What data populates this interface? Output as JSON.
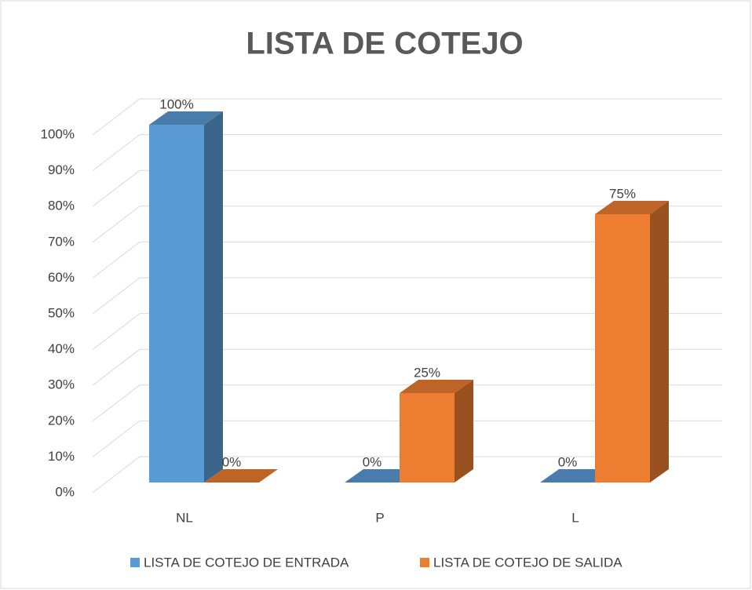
{
  "chart_data": {
    "type": "bar3d",
    "title": "LISTA DE COTEJO",
    "categories": [
      "NL",
      "P",
      "L"
    ],
    "series": [
      {
        "name": "LISTA DE COTEJO DE ENTRADA",
        "color": "#5b9bd5",
        "values": [
          100,
          0,
          0
        ],
        "value_labels": [
          "100%",
          "0%",
          "0%"
        ]
      },
      {
        "name": "LISTA DE COTEJO DE SALIDA",
        "color": "#ed7d31",
        "values": [
          0,
          25,
          75
        ],
        "value_labels": [
          "0%",
          "25%",
          "75%"
        ]
      }
    ],
    "ylim": [
      0,
      100
    ],
    "yticks": [
      {
        "value": 0,
        "label": "0%"
      },
      {
        "value": 10,
        "label": "10%"
      },
      {
        "value": 20,
        "label": "20%"
      },
      {
        "value": 30,
        "label": "30%"
      },
      {
        "value": 40,
        "label": "40%"
      },
      {
        "value": 50,
        "label": "50%"
      },
      {
        "value": 60,
        "label": "60%"
      },
      {
        "value": 70,
        "label": "70%"
      },
      {
        "value": 80,
        "label": "80%"
      },
      {
        "value": 90,
        "label": "90%"
      },
      {
        "value": 100,
        "label": "100%"
      }
    ],
    "grid": true,
    "legend": "bottom"
  }
}
